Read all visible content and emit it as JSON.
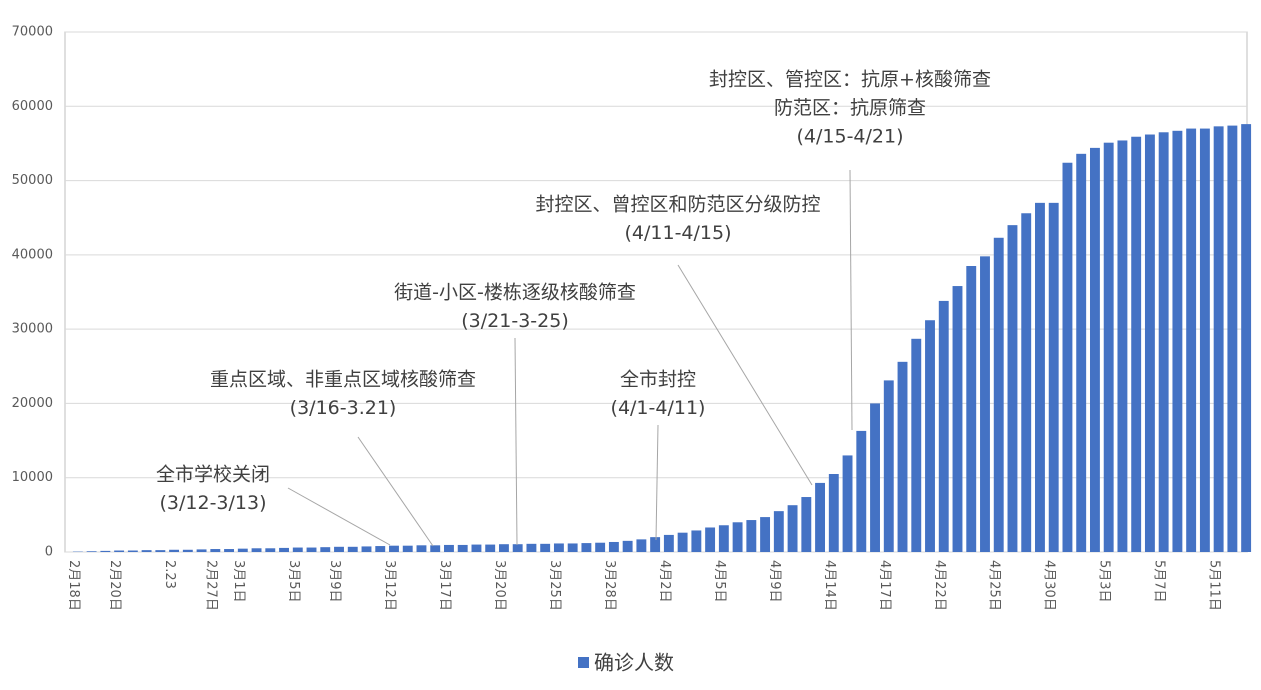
{
  "chart_data": {
    "type": "bar",
    "categories": [
      "2月18日",
      null,
      null,
      "2月20日",
      null,
      null,
      null,
      "2.23",
      null,
      null,
      "2月27日",
      null,
      "3月1日",
      null,
      null,
      null,
      "3月5日",
      null,
      null,
      "3月9日",
      null,
      null,
      null,
      "3月12日",
      null,
      null,
      null,
      "3月17日",
      null,
      null,
      null,
      "3月20日",
      null,
      null,
      null,
      "3月25日",
      null,
      null,
      null,
      "3月28日",
      null,
      null,
      null,
      "4月2日",
      null,
      null,
      null,
      "4月5日",
      null,
      null,
      null,
      "4月9日",
      null,
      null,
      null,
      "4月14日",
      null,
      null,
      null,
      "4月17日",
      null,
      null,
      null,
      "4月22日",
      null,
      null,
      null,
      "4月25日",
      null,
      null,
      null,
      "4月30日",
      null,
      null,
      null,
      "5月3日",
      null,
      null,
      null,
      "5月7日",
      null,
      null,
      null,
      "5月11日",
      null,
      null
    ],
    "series": [
      {
        "name": "确诊人数",
        "color": "#4472c4",
        "values": [
          50,
          100,
          150,
          200,
          200,
          250,
          250,
          300,
          300,
          350,
          400,
          400,
          450,
          500,
          500,
          550,
          600,
          600,
          650,
          700,
          700,
          750,
          800,
          850,
          850,
          900,
          900,
          950,
          950,
          1000,
          1000,
          1050,
          1050,
          1100,
          1100,
          1150,
          1150,
          1200,
          1250,
          1350,
          1500,
          1700,
          2000,
          2300,
          2600,
          2900,
          3300,
          3600,
          4000,
          4300,
          4700,
          5500,
          6300,
          7400,
          9300,
          10500,
          13000,
          16300,
          20000,
          23100,
          25600,
          28700,
          31200,
          33800,
          35800,
          38500,
          39800,
          42300,
          44000,
          45600,
          47000,
          47000,
          52400,
          53600,
          54400,
          55100,
          55400,
          55900,
          56200,
          56500,
          56700,
          57000,
          57000,
          57300,
          57400,
          57600
        ]
      }
    ],
    "ylim": [
      0,
      70000
    ],
    "yticks": [
      0,
      10000,
      20000,
      30000,
      40000,
      50000,
      60000,
      70000
    ],
    "grid": true,
    "legend": "bottom",
    "annotations": [
      {
        "lines": [
          "全市学校关闭",
          "(3/12-3/13)"
        ]
      },
      {
        "lines": [
          "重点区域、非重点区域核酸筛查",
          "(3/16-3.21)"
        ]
      },
      {
        "lines": [
          "街道-小区-楼栋逐级核酸筛查",
          "(3/21-3-25)"
        ]
      },
      {
        "lines": [
          "全市封控",
          "(4/1-4/11)"
        ]
      },
      {
        "lines": [
          "封控区、曾控区和防范区分级防控",
          "(4/11-4/15)"
        ]
      },
      {
        "lines": [
          "封控区、管控区：抗原+核酸筛查",
          "防范区：抗原筛查",
          "(4/15-4/21)"
        ]
      }
    ]
  }
}
